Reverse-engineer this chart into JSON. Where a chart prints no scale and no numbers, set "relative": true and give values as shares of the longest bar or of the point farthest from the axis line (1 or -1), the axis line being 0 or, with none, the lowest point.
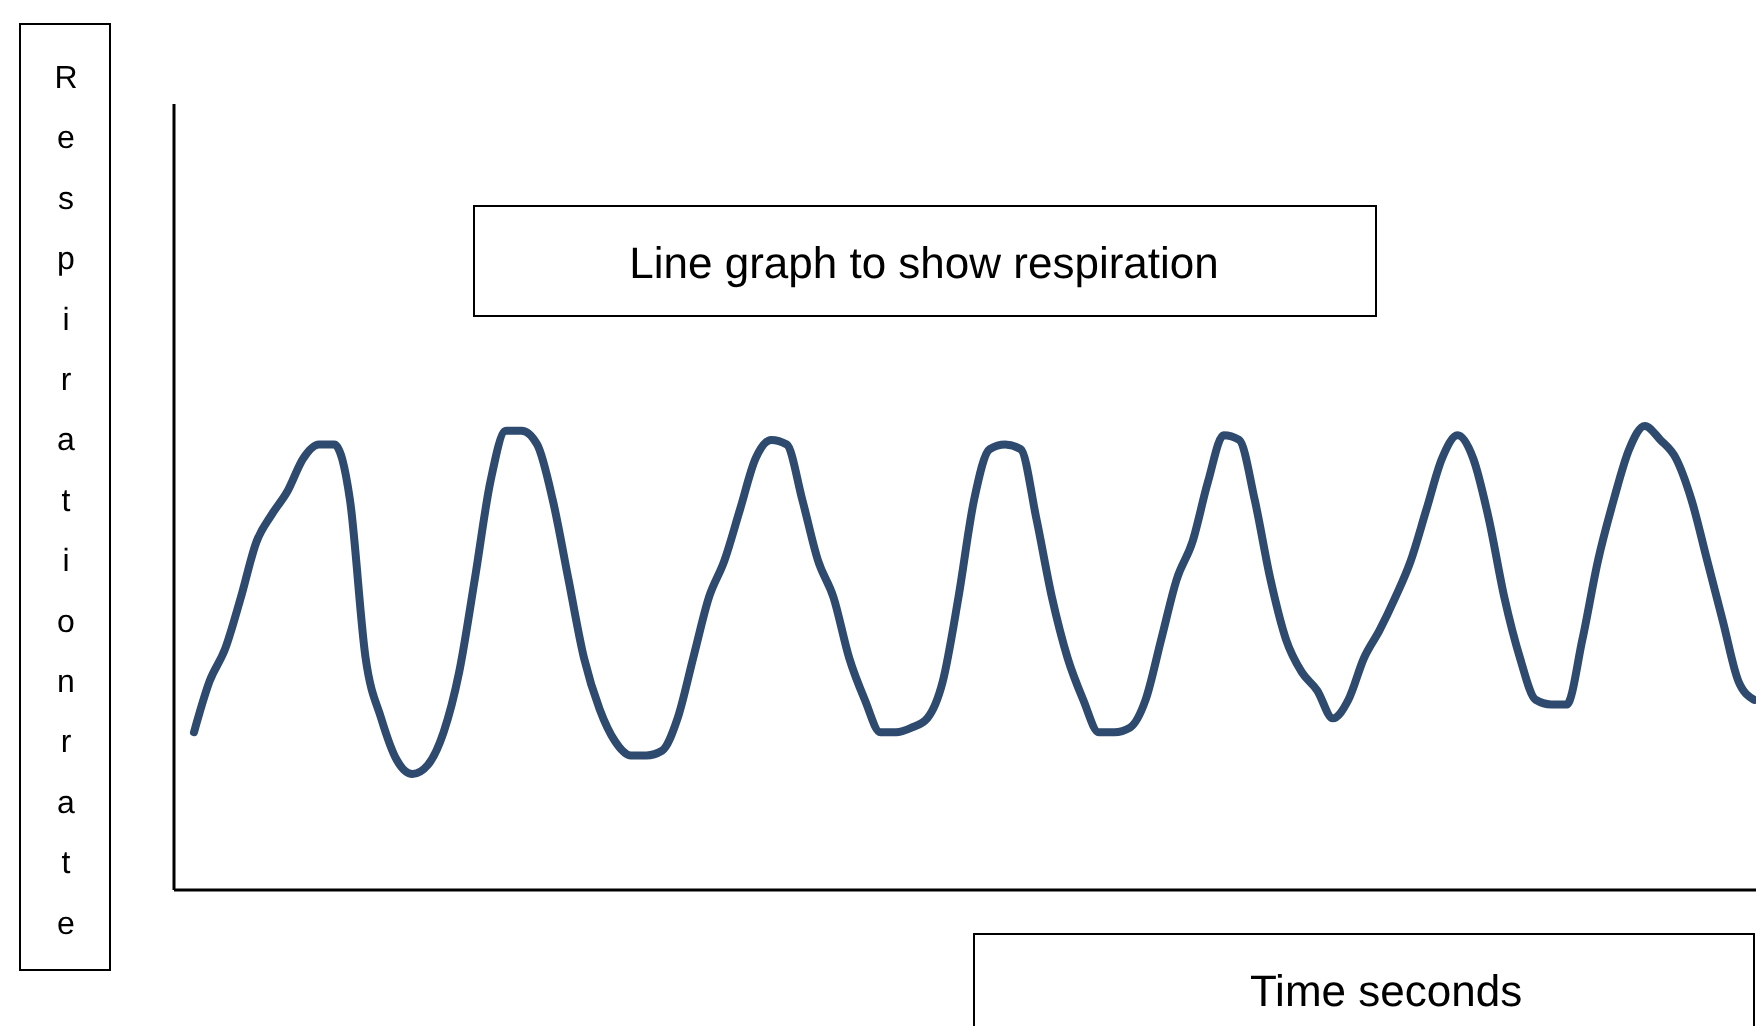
{
  "chart_data": {
    "type": "line",
    "title": "Line graph to show respiration",
    "xlabel": "Time seconds",
    "ylabel": "Respirationrate",
    "relative": true,
    "categories": [
      null,
      null,
      null,
      null,
      null,
      null,
      null,
      null,
      null,
      null,
      null,
      null,
      null,
      null,
      null,
      null,
      null,
      null,
      null,
      null,
      null,
      null,
      null,
      null,
      null,
      null,
      null,
      null,
      null,
      null,
      null,
      null,
      null,
      null,
      null,
      null,
      null,
      null,
      null,
      null,
      null,
      null,
      null,
      null,
      null,
      null,
      null,
      null,
      null,
      null,
      null,
      null,
      null,
      null,
      null,
      null,
      null,
      null,
      null,
      null,
      null,
      null,
      null,
      null,
      null,
      null,
      null,
      null,
      null,
      null,
      null,
      null,
      null,
      null,
      null,
      null,
      null,
      null,
      null,
      null,
      null,
      null,
      null,
      null,
      null,
      null,
      null,
      null,
      null,
      null,
      null,
      null,
      null,
      null,
      null,
      null,
      null,
      null,
      null,
      null,
      null
    ],
    "series": [
      {
        "color": "#2e4a6e",
        "values": [
          0.34,
          0.45,
          0.52,
          0.63,
          0.75,
          0.81,
          0.86,
          0.93,
          0.96,
          0.96,
          0.84,
          0.5,
          0.37,
          0.28,
          0.25,
          0.27,
          0.34,
          0.47,
          0.67,
          0.88,
          0.99,
          0.99,
          0.96,
          0.84,
          0.67,
          0.5,
          0.39,
          0.32,
          0.29,
          0.29,
          0.3,
          0.37,
          0.5,
          0.63,
          0.71,
          0.82,
          0.93,
          0.97,
          0.96,
          0.84,
          0.71,
          0.63,
          0.5,
          0.41,
          0.34,
          0.34,
          0.35,
          0.37,
          0.45,
          0.63,
          0.84,
          0.95,
          0.96,
          0.95,
          0.8,
          0.63,
          0.5,
          0.41,
          0.34,
          0.34,
          0.35,
          0.41,
          0.54,
          0.67,
          0.75,
          0.88,
          0.98,
          0.97,
          0.84,
          0.67,
          0.54,
          0.47,
          0.43,
          0.37,
          0.41,
          0.5,
          0.56,
          0.63,
          0.71,
          0.82,
          0.93,
          0.98,
          0.93,
          0.8,
          0.63,
          0.5,
          0.41,
          0.4,
          0.4,
          0.54,
          0.71,
          0.84,
          0.95,
          1,
          0.97,
          0.93,
          0.84,
          0.71,
          0.58,
          0.45,
          0.41
        ]
      }
    ]
  }
}
